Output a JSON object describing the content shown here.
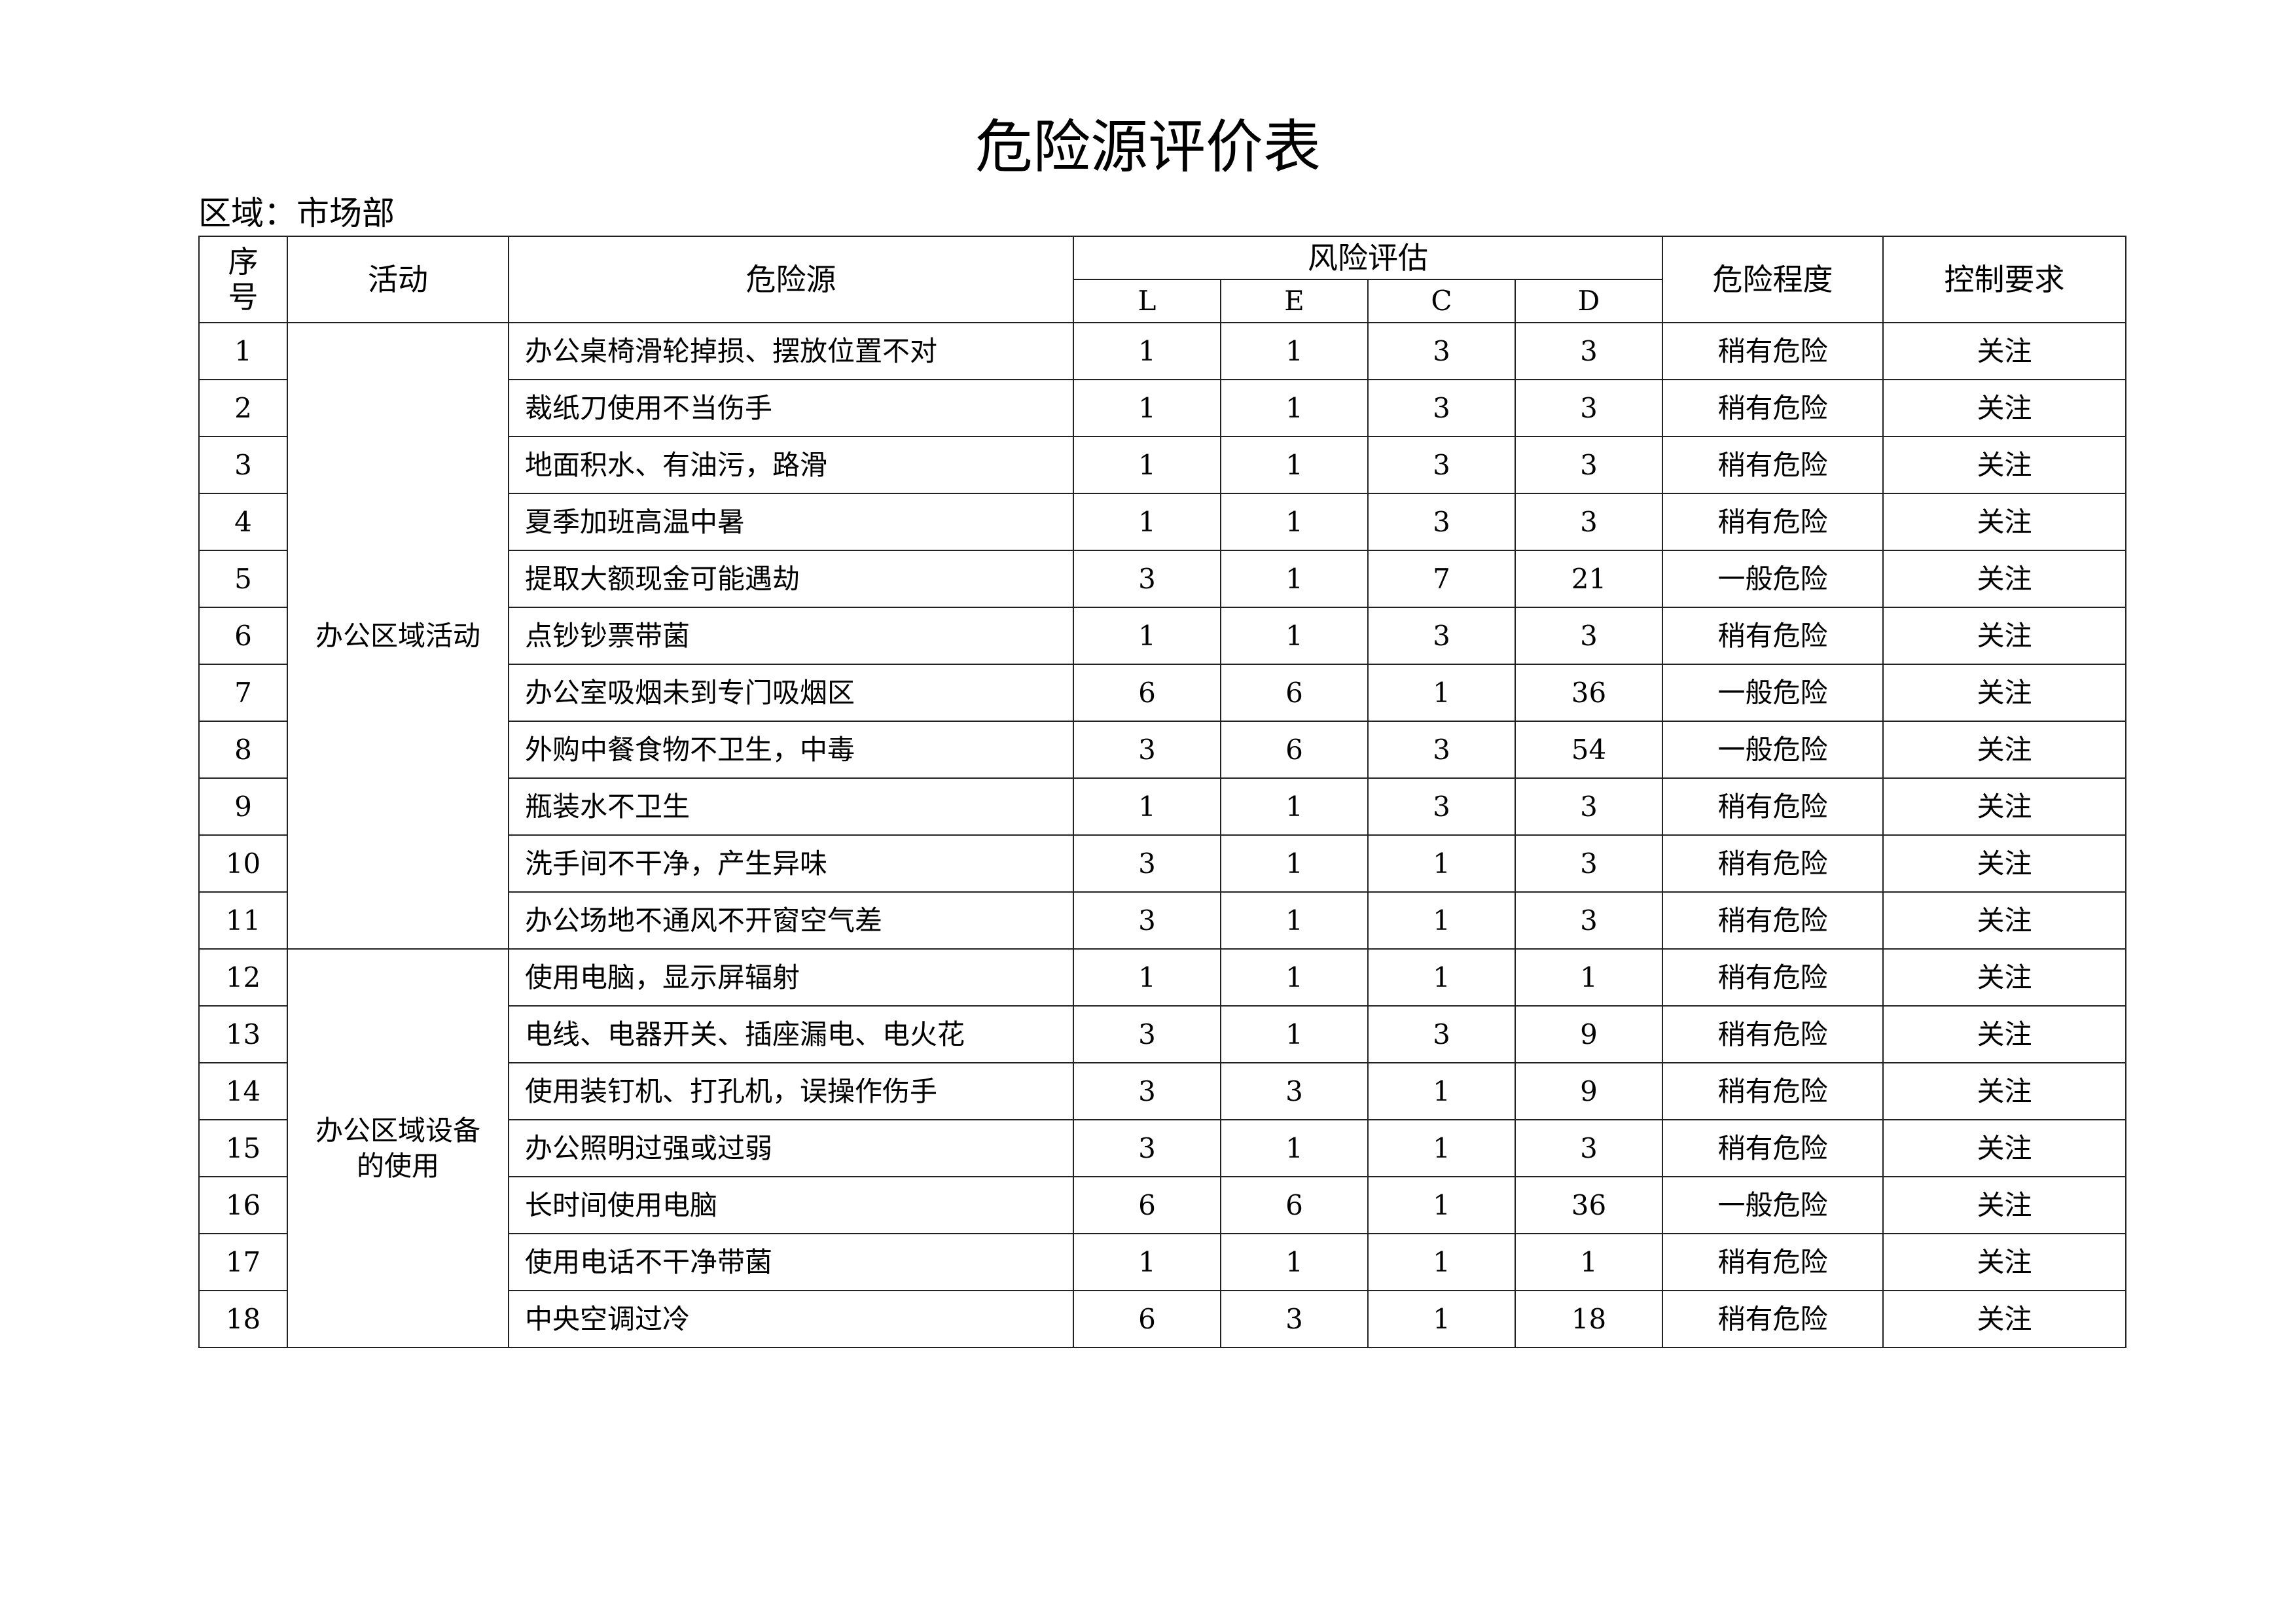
{
  "title": "危险源评价表",
  "region": "区域：市场部",
  "header": {
    "no": "序\n号",
    "activity": "活动",
    "hazard": "危险源",
    "risk": "风险评估",
    "L": "L",
    "E": "E",
    "C": "C",
    "D": "D",
    "level": "危险程度",
    "control": "控制要求"
  },
  "groups": [
    {
      "activity": "办公区域活动",
      "rows": [
        {
          "no": "1",
          "hazard": "办公桌椅滑轮掉损、摆放位置不对",
          "L": "1",
          "E": "1",
          "C": "3",
          "D": "3",
          "level": "稍有危险",
          "control": "关注"
        },
        {
          "no": "2",
          "hazard": "裁纸刀使用不当伤手",
          "L": "1",
          "E": "1",
          "C": "3",
          "D": "3",
          "level": "稍有危险",
          "control": "关注"
        },
        {
          "no": "3",
          "hazard": "地面积水、有油污，路滑",
          "L": "1",
          "E": "1",
          "C": "3",
          "D": "3",
          "level": "稍有危险",
          "control": "关注"
        },
        {
          "no": "4",
          "hazard": "夏季加班高温中暑",
          "L": "1",
          "E": "1",
          "C": "3",
          "D": "3",
          "level": "稍有危险",
          "control": "关注"
        },
        {
          "no": "5",
          "hazard": "提取大额现金可能遇劫",
          "L": "3",
          "E": "1",
          "C": "7",
          "D": "21",
          "level": "一般危险",
          "control": "关注"
        },
        {
          "no": "6",
          "hazard": "点钞钞票带菌",
          "L": "1",
          "E": "1",
          "C": "3",
          "D": "3",
          "level": "稍有危险",
          "control": "关注"
        },
        {
          "no": "7",
          "hazard": "办公室吸烟未到专门吸烟区",
          "L": "6",
          "E": "6",
          "C": "1",
          "D": "36",
          "level": "一般危险",
          "control": "关注"
        },
        {
          "no": "8",
          "hazard": "外购中餐食物不卫生，中毒",
          "L": "3",
          "E": "6",
          "C": "3",
          "D": "54",
          "level": "一般危险",
          "control": "关注"
        },
        {
          "no": "9",
          "hazard": "瓶装水不卫生",
          "L": "1",
          "E": "1",
          "C": "3",
          "D": "3",
          "level": "稍有危险",
          "control": "关注"
        },
        {
          "no": "10",
          "hazard": "洗手间不干净，产生异味",
          "L": "3",
          "E": "1",
          "C": "1",
          "D": "3",
          "level": "稍有危险",
          "control": "关注"
        },
        {
          "no": "11",
          "hazard": "办公场地不通风不开窗空气差",
          "L": "3",
          "E": "1",
          "C": "1",
          "D": "3",
          "level": "稍有危险",
          "control": "关注"
        }
      ]
    },
    {
      "activity": "办公区域设备\n的使用",
      "rows": [
        {
          "no": "12",
          "hazard": "使用电脑，显示屏辐射",
          "L": "1",
          "E": "1",
          "C": "1",
          "D": "1",
          "level": "稍有危险",
          "control": "关注"
        },
        {
          "no": "13",
          "hazard": "电线、电器开关、插座漏电、电火花",
          "L": "3",
          "E": "1",
          "C": "3",
          "D": "9",
          "level": "稍有危险",
          "control": "关注"
        },
        {
          "no": "14",
          "hazard": "使用装钉机、打孔机，误操作伤手",
          "L": "3",
          "E": "3",
          "C": "1",
          "D": "9",
          "level": "稍有危险",
          "control": "关注"
        },
        {
          "no": "15",
          "hazard": "办公照明过强或过弱",
          "L": "3",
          "E": "1",
          "C": "1",
          "D": "3",
          "level": "稍有危险",
          "control": "关注"
        },
        {
          "no": "16",
          "hazard": "长时间使用电脑",
          "L": "6",
          "E": "6",
          "C": "1",
          "D": "36",
          "level": "一般危险",
          "control": "关注"
        },
        {
          "no": "17",
          "hazard": "使用电话不干净带菌",
          "L": "1",
          "E": "1",
          "C": "1",
          "D": "1",
          "level": "稍有危险",
          "control": "关注"
        },
        {
          "no": "18",
          "hazard": "中央空调过冷",
          "L": "6",
          "E": "3",
          "C": "1",
          "D": "18",
          "level": "稍有危险",
          "control": "关注"
        }
      ]
    }
  ]
}
